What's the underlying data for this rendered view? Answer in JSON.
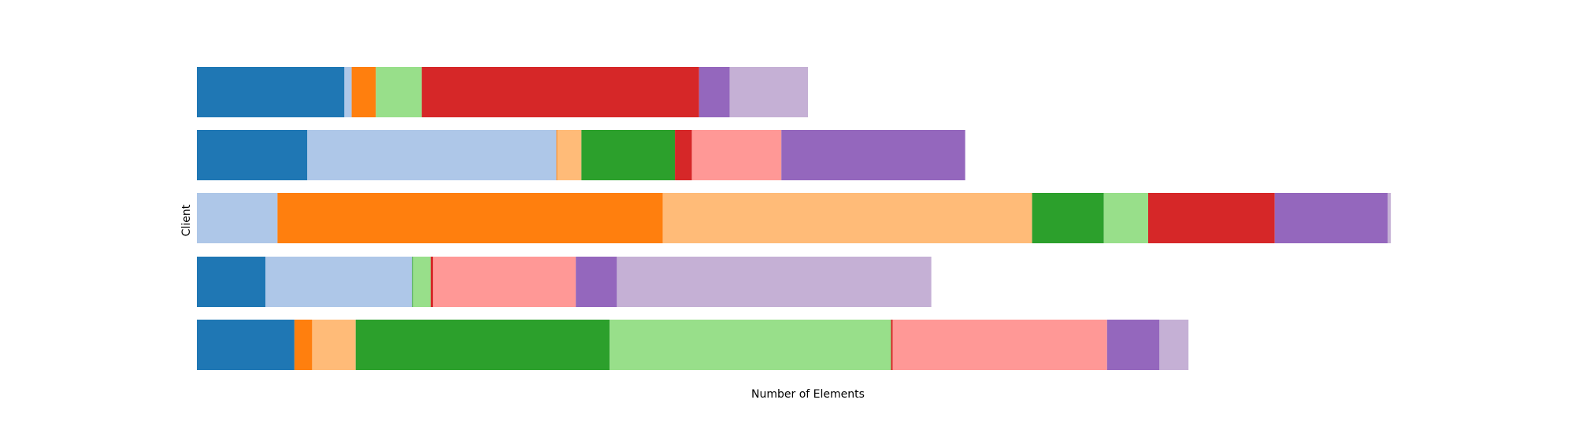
{
  "chart_data": {
    "type": "bar",
    "orientation": "horizontal",
    "stacked": true,
    "xlabel": "Number of Elements",
    "ylabel": "Client",
    "xlim": [
      0,
      1517
    ],
    "grid": false,
    "legend": "none",
    "axes_visible": false,
    "palette": [
      "#1f77b4",
      "#aec7e8",
      "#ff7f0e",
      "#ffbb78",
      "#2ca02c",
      "#98df8a",
      "#d62728",
      "#ff9896",
      "#9467bd",
      "#c5b0d5"
    ],
    "rows": [
      {
        "values": [
          183,
          9,
          30,
          0,
          0,
          57,
          344,
          0,
          38,
          97
        ]
      },
      {
        "values": [
          137,
          309,
          1,
          30,
          116,
          0,
          21,
          111,
          228,
          0
        ]
      },
      {
        "values": [
          0,
          100,
          478,
          458,
          89,
          55,
          157,
          0,
          140,
          4
        ]
      },
      {
        "values": [
          85,
          182,
          0,
          0,
          1,
          22,
          3,
          177,
          51,
          390
        ]
      },
      {
        "values": [
          121,
          0,
          22,
          54,
          315,
          349,
          2,
          266,
          65,
          36
        ]
      }
    ]
  }
}
